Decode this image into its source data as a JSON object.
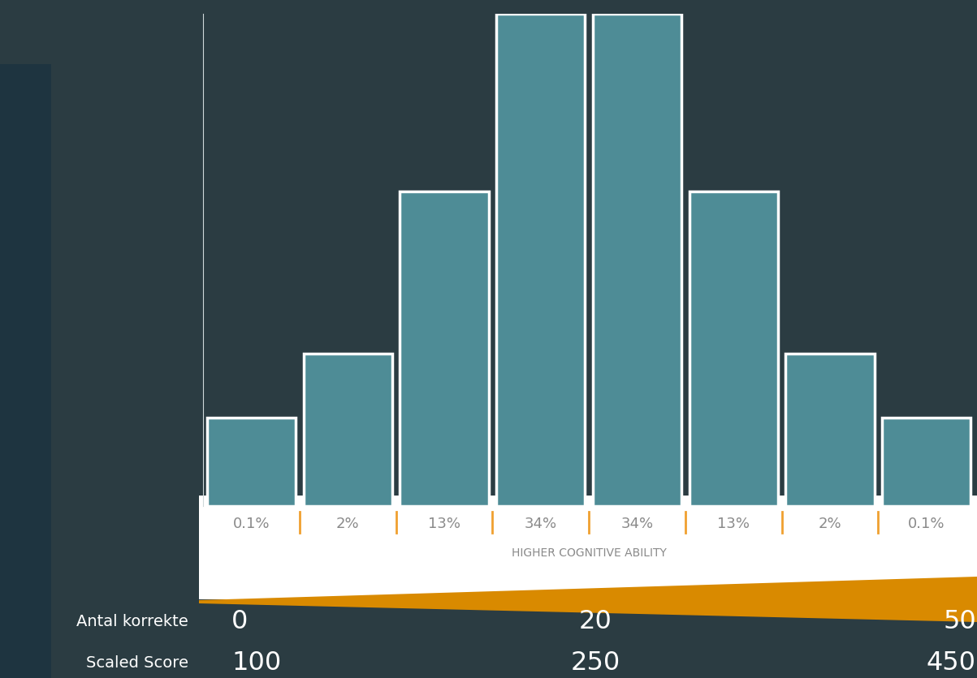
{
  "chart_data": {
    "type": "bar",
    "categories": [
      "0.1%",
      "2%",
      "13%",
      "34%",
      "34%",
      "13%",
      "2%",
      "0.1%"
    ],
    "values": [
      18,
      31,
      64,
      100,
      100,
      64,
      31,
      18
    ],
    "color": "#4e8c96",
    "ylim": [
      0,
      100
    ],
    "tick_labels": "x",
    "xlabel": "HIGHER COGNITIVE ABILITY",
    "scales": [
      {
        "label": "Antal korrekte",
        "ticks": [
          0,
          20,
          50
        ]
      },
      {
        "label": "Scaled Score",
        "ticks": [
          100,
          250,
          450
        ]
      }
    ]
  }
}
